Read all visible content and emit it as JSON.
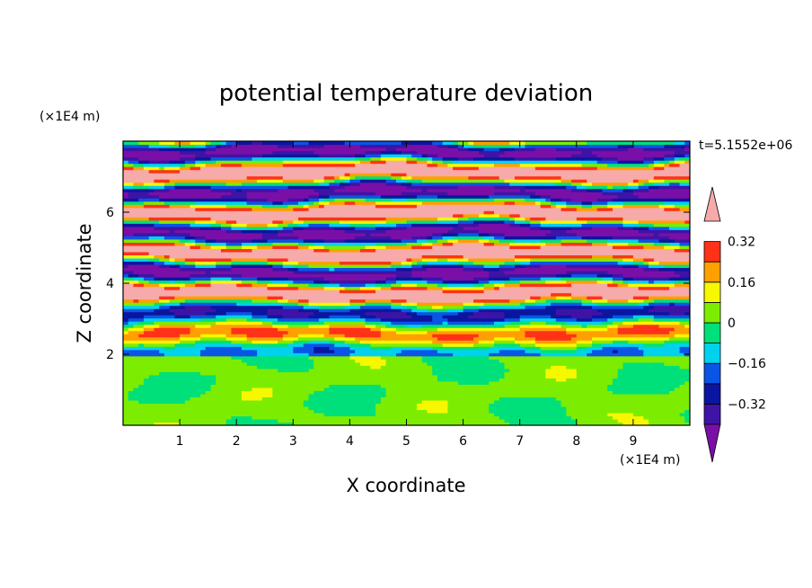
{
  "chart_data": {
    "type": "heatmap",
    "title": "potential temperature deviation",
    "xlabel": "X coordinate",
    "ylabel": "Z coordinate",
    "x_unit": "(×1E4 m)",
    "y_unit": "(×1E4 m)",
    "time_label": "t=5.1552e+06",
    "xlim": [
      0,
      10
    ],
    "ylim": [
      0,
      8
    ],
    "x_ticks": [
      "1",
      "2",
      "3",
      "4",
      "5",
      "6",
      "7",
      "8",
      "9"
    ],
    "y_ticks": [
      "2",
      "4",
      "6"
    ],
    "colorbar": {
      "levels": [
        -0.4,
        -0.32,
        -0.24,
        -0.16,
        -0.08,
        0,
        0.08,
        0.16,
        0.24,
        0.32,
        0.4
      ],
      "tick_labels": [
        "0.32",
        "0.16",
        "0",
        "−0.16",
        "−0.32"
      ],
      "colors": [
        "#7a0fa8",
        "#3f13a6",
        "#0a16a0",
        "#0a55e6",
        "#00d2ee",
        "#00e07a",
        "#7ced00",
        "#f7f700",
        "#ffa000",
        "#ff3218",
        "#f6aaaa"
      ],
      "extend": "both"
    }
  }
}
